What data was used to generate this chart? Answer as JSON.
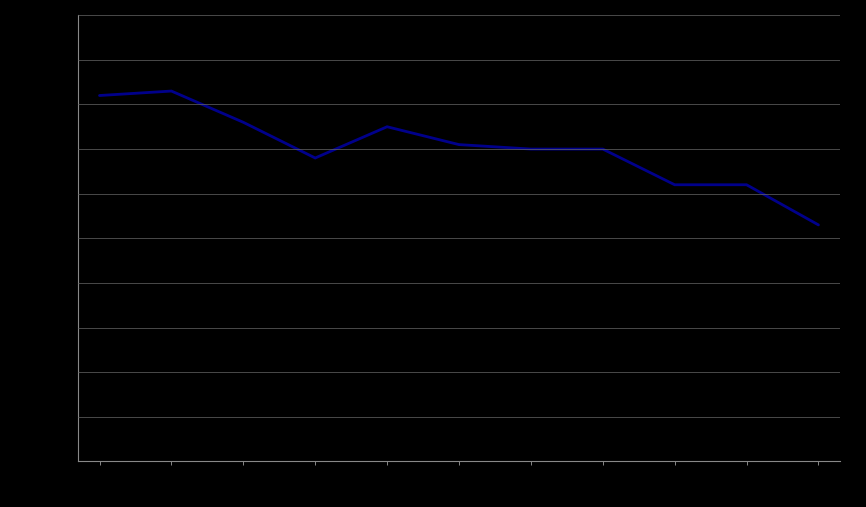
{
  "x_values": [
    0,
    1,
    2,
    3,
    4,
    5,
    6,
    7,
    8,
    9,
    10
  ],
  "y_values": [
    82,
    83,
    76,
    68,
    75,
    71,
    70,
    70,
    62,
    62,
    53
  ],
  "line_color": "#00008B",
  "background_color": "#000000",
  "plot_bg_color": "#000000",
  "grid_color": "#666666",
  "spine_color": "#888888",
  "tick_color": "#888888",
  "line_width": 2.0,
  "ylim": [
    0,
    100
  ],
  "xlim": [
    -0.3,
    10.3
  ],
  "ytick_positions": [
    0,
    10,
    20,
    30,
    40,
    50,
    60,
    70,
    80,
    90,
    100
  ],
  "xtick_positions": [
    0,
    1,
    2,
    3,
    4,
    5,
    6,
    7,
    8,
    9,
    10
  ],
  "figsize": [
    8.66,
    5.07
  ],
  "dpi": 100
}
